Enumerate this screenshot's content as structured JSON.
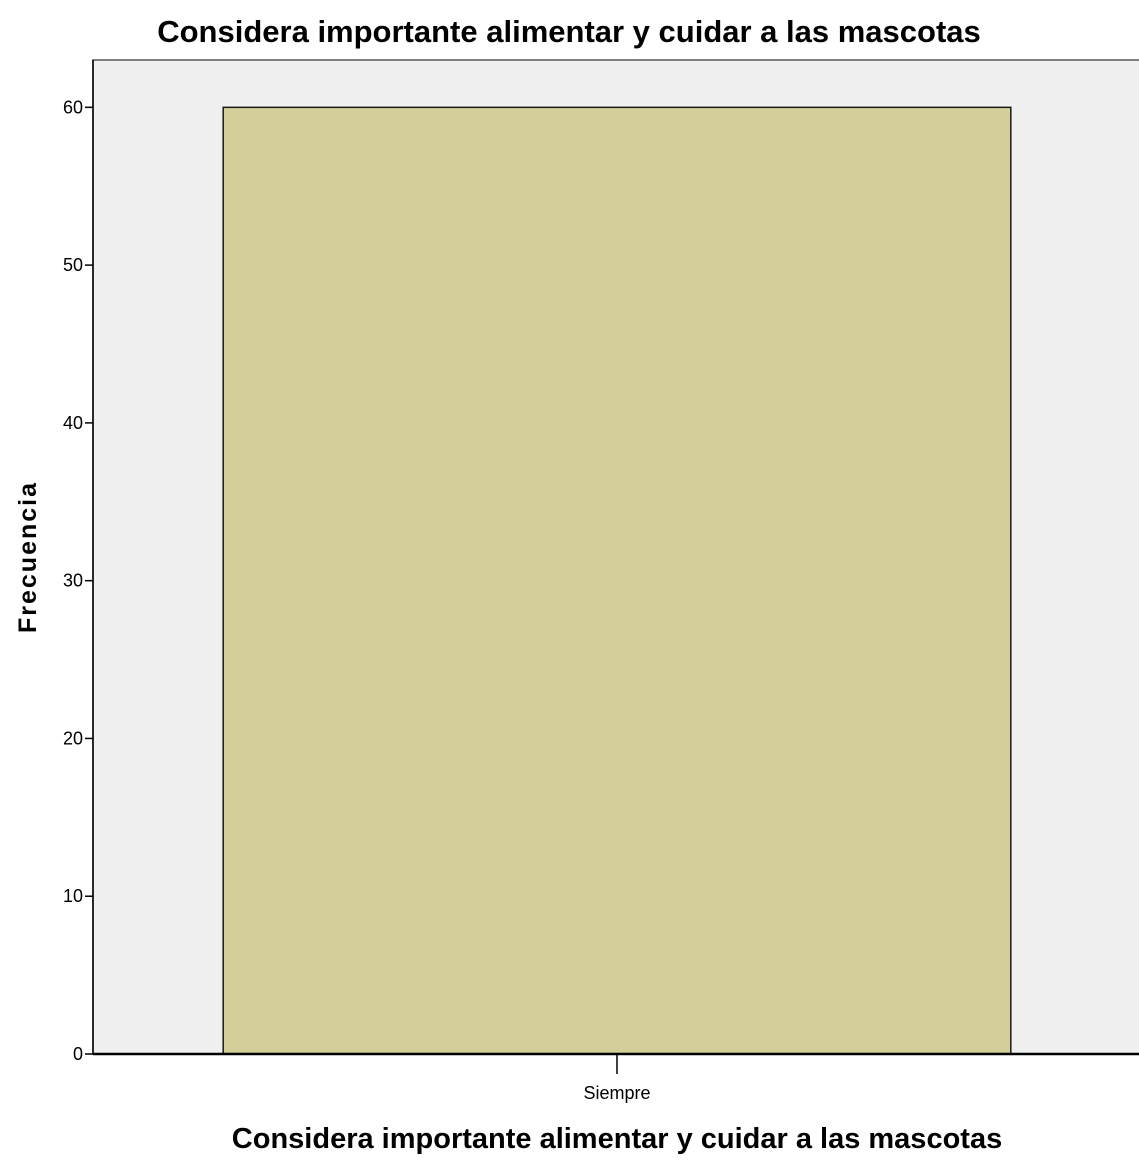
{
  "chart_data": {
    "type": "bar",
    "title": "Considera importante alimentar y cuidar a las mascotas",
    "xlabel": "Considera importante alimentar y cuidar a las mascotas",
    "ylabel": "Frecuencia",
    "categories": [
      "Siempre"
    ],
    "values": [
      60
    ],
    "ylim": [
      0,
      63
    ],
    "yticks": [
      "0",
      "10",
      "20",
      "30",
      "40",
      "50",
      "60"
    ],
    "grid": false,
    "legend": "none",
    "colors": {
      "bar_fill": "#d4ce98",
      "bar_stroke": "#1a1a1a",
      "plot_background": "#f0f0f0",
      "frame": "#555555",
      "axis": "#000000"
    }
  }
}
